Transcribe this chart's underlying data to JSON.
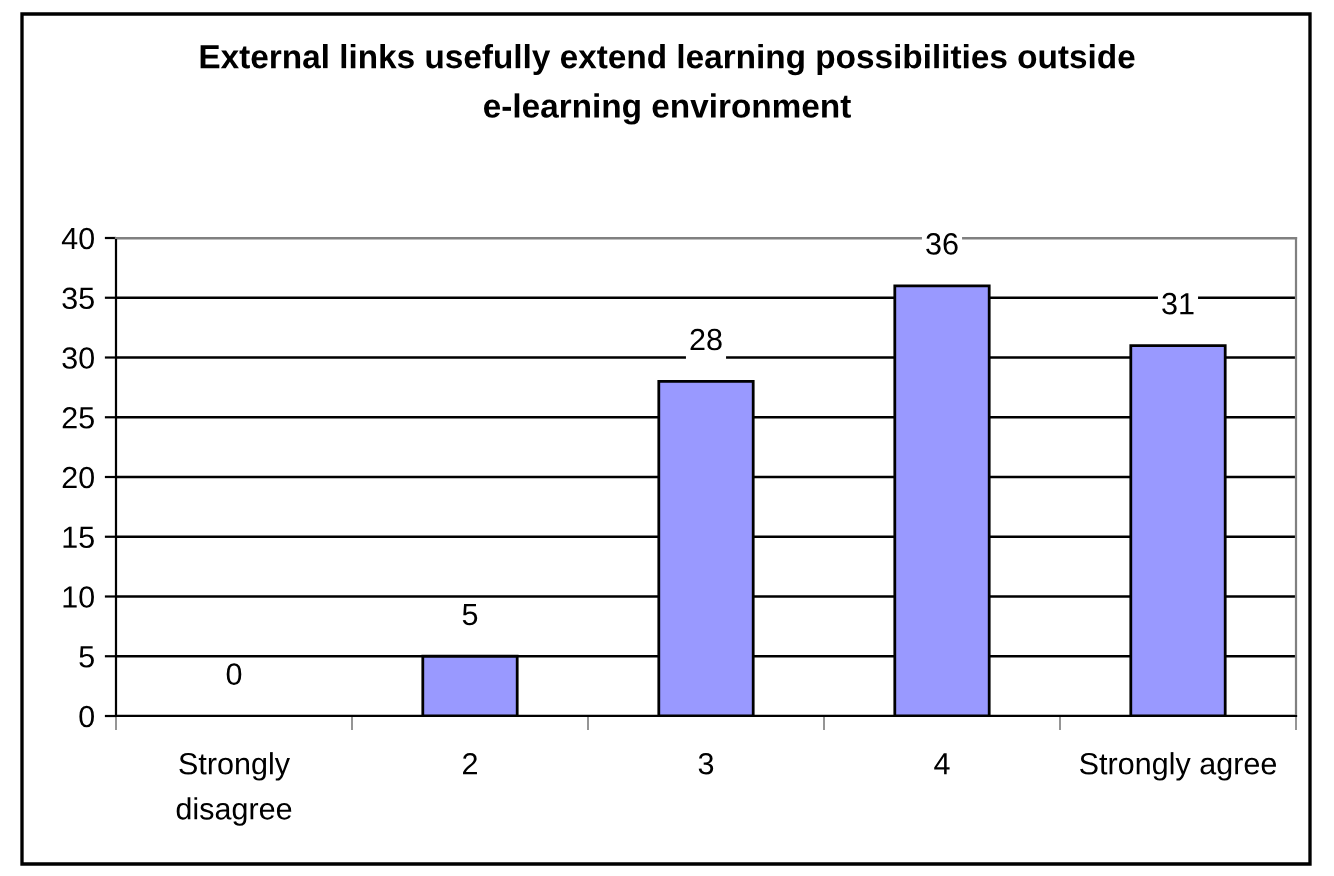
{
  "chart_data": {
    "type": "bar",
    "title": "External links usefully extend learning possibilities outside\ne-learning environment",
    "categories": [
      "Strongly\ndisagree",
      "2",
      "3",
      "4",
      "Strongly agree"
    ],
    "values": [
      0,
      5,
      28,
      36,
      31
    ],
    "color": "#9999ff",
    "ylim": [
      0,
      40
    ],
    "yticks": [
      0,
      5,
      10,
      15,
      20,
      25,
      30,
      35,
      40
    ],
    "grid": "y",
    "data_labels": true,
    "legend": false
  }
}
